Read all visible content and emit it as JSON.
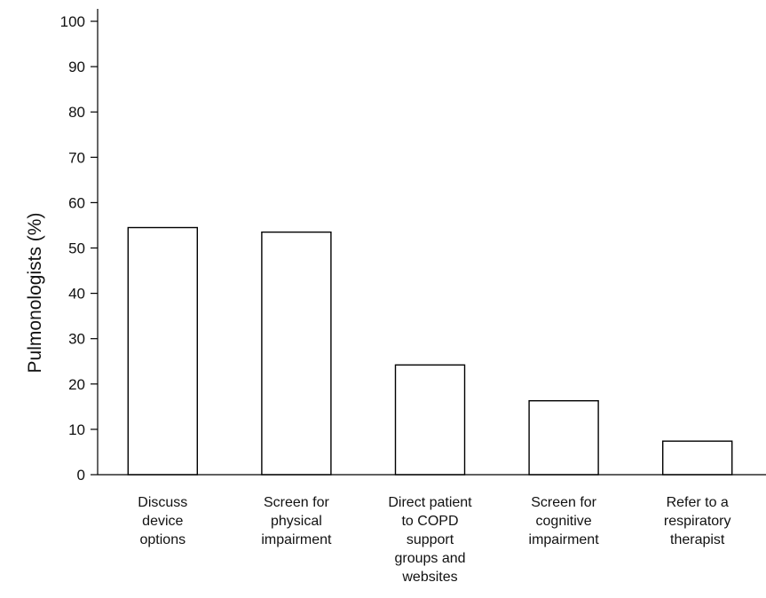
{
  "chart_data": {
    "type": "bar",
    "title": "",
    "xlabel": "",
    "ylabel": "Pulmonologists (%)",
    "ylim": [
      0,
      100
    ],
    "yticks": [
      0,
      10,
      20,
      30,
      40,
      50,
      60,
      70,
      80,
      90,
      100
    ],
    "grid": false,
    "categories": [
      [
        "Discuss",
        "device",
        "options"
      ],
      [
        "Screen for",
        "physical",
        "impairment"
      ],
      [
        "Direct patient",
        "to COPD",
        "support",
        "groups and",
        "websites"
      ],
      [
        "Screen for",
        "cognitive",
        "impairment"
      ],
      [
        "Refer to a",
        "respiratory",
        "therapist"
      ]
    ],
    "values": [
      54.5,
      53.5,
      24.2,
      16.3,
      7.4
    ],
    "colors": {
      "bar_fill": "#ffffff",
      "bar_stroke": "#000000",
      "axis": "#000000"
    }
  }
}
